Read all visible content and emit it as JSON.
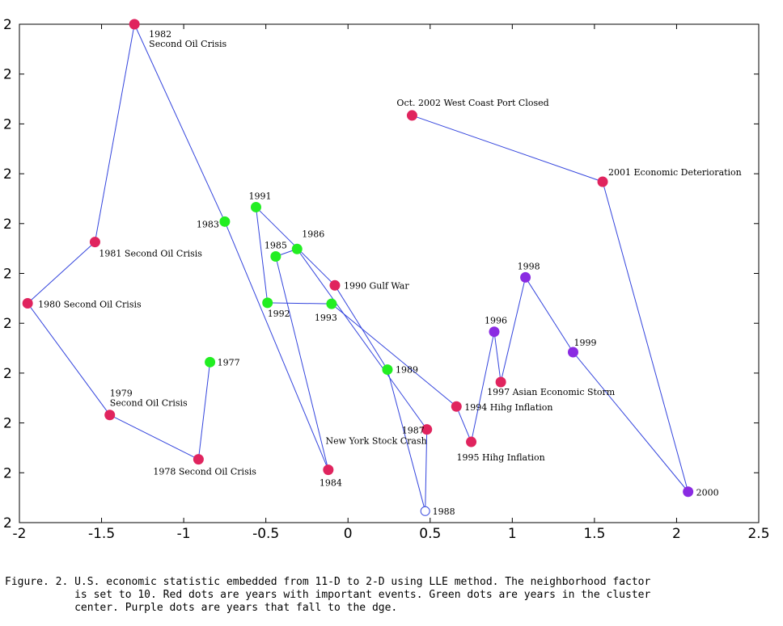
{
  "chart_data": {
    "type": "scatter",
    "title": "",
    "xlabel": "",
    "ylabel": "",
    "xlim": [
      -2,
      2.5
    ],
    "ylim": [
      0,
      10
    ],
    "x_ticks": [
      "-2",
      "-1.5",
      "-1",
      "-0.5",
      "0",
      "0.5",
      "1",
      "1.5",
      "2",
      "2.5"
    ],
    "y_ticks": [
      "2",
      "2",
      "2",
      "2",
      "2",
      "2",
      "2",
      "2",
      "2",
      "2",
      "2"
    ],
    "grid": false,
    "connected": true,
    "colors": {
      "event": "#e0245e",
      "center": "#22ee22",
      "edge": "#8a2be2",
      "open": "#ffffff",
      "line": "#3344dd",
      "open_stroke": "#3344dd"
    },
    "points": [
      {
        "x": -0.84,
        "y": 3.22,
        "group": "center",
        "label": [
          "1977"
        ]
      },
      {
        "x": -0.91,
        "y": 1.27,
        "group": "event",
        "label": [
          "1978 Second Oil Crisis"
        ]
      },
      {
        "x": -1.45,
        "y": 2.16,
        "group": "event",
        "label": [
          "1979",
          "Second Oil Crisis"
        ]
      },
      {
        "x": -1.95,
        "y": 4.4,
        "group": "event",
        "label": [
          "1980 Second Oil Crisis"
        ]
      },
      {
        "x": -1.54,
        "y": 5.63,
        "group": "event",
        "label": [
          "1981 Second Oil Crisis"
        ]
      },
      {
        "x": -1.3,
        "y": 10.0,
        "group": "event",
        "label": [
          "1982",
          "Second Oil Crisis"
        ]
      },
      {
        "x": -0.75,
        "y": 6.04,
        "group": "center",
        "label": [
          "1983"
        ]
      },
      {
        "x": -0.12,
        "y": 1.06,
        "group": "event",
        "label": [
          "1984"
        ]
      },
      {
        "x": -0.44,
        "y": 5.34,
        "group": "center",
        "label": [
          "1985"
        ]
      },
      {
        "x": -0.31,
        "y": 5.49,
        "group": "center",
        "label": [
          "1986"
        ]
      },
      {
        "x": 0.48,
        "y": 1.87,
        "group": "event",
        "label": [
          "1987",
          "New York Stock Crash"
        ]
      },
      {
        "x": 0.47,
        "y": 0.23,
        "group": "open",
        "label": [
          "1988"
        ]
      },
      {
        "x": 0.24,
        "y": 3.07,
        "group": "center",
        "label": [
          "1989"
        ]
      },
      {
        "x": -0.08,
        "y": 4.76,
        "group": "event",
        "label": [
          "1990 Gulf War"
        ]
      },
      {
        "x": -0.56,
        "y": 6.33,
        "group": "center",
        "label": [
          "1991"
        ]
      },
      {
        "x": -0.49,
        "y": 4.41,
        "group": "center",
        "label": [
          "1992"
        ]
      },
      {
        "x": -0.1,
        "y": 4.39,
        "group": "center",
        "label": [
          "1993"
        ]
      },
      {
        "x": 0.66,
        "y": 2.33,
        "group": "event",
        "label": [
          "1994 Hihg Inflation"
        ]
      },
      {
        "x": 0.75,
        "y": 1.62,
        "group": "event",
        "label": [
          "1995 Hihg Inflation"
        ]
      },
      {
        "x": 0.89,
        "y": 3.83,
        "group": "edge",
        "label": [
          "1996"
        ]
      },
      {
        "x": 0.93,
        "y": 2.82,
        "group": "event",
        "label": [
          "1997 Asian Economic Storm"
        ]
      },
      {
        "x": 1.08,
        "y": 4.92,
        "group": "edge",
        "label": [
          "1998"
        ]
      },
      {
        "x": 1.37,
        "y": 3.42,
        "group": "edge",
        "label": [
          "1999"
        ]
      },
      {
        "x": 2.07,
        "y": 0.62,
        "group": "edge",
        "label": [
          "2000"
        ]
      },
      {
        "x": 1.55,
        "y": 6.84,
        "group": "event",
        "label": [
          "2001 Economic Deterioration"
        ]
      },
      {
        "x": 0.39,
        "y": 8.17,
        "group": "event",
        "label": [
          "Oct. 2002 West Coast Port Closed"
        ]
      }
    ]
  },
  "caption": {
    "lines": [
      "Figure. 2. U.S. economic statistic embedded from 11-D to 2-D using LLE method. The neighborhood factor",
      "           is set to 10. Red dots are years with important events. Green dots are years in the cluster",
      "           center. Purple dots are years that fall to the dge."
    ]
  }
}
